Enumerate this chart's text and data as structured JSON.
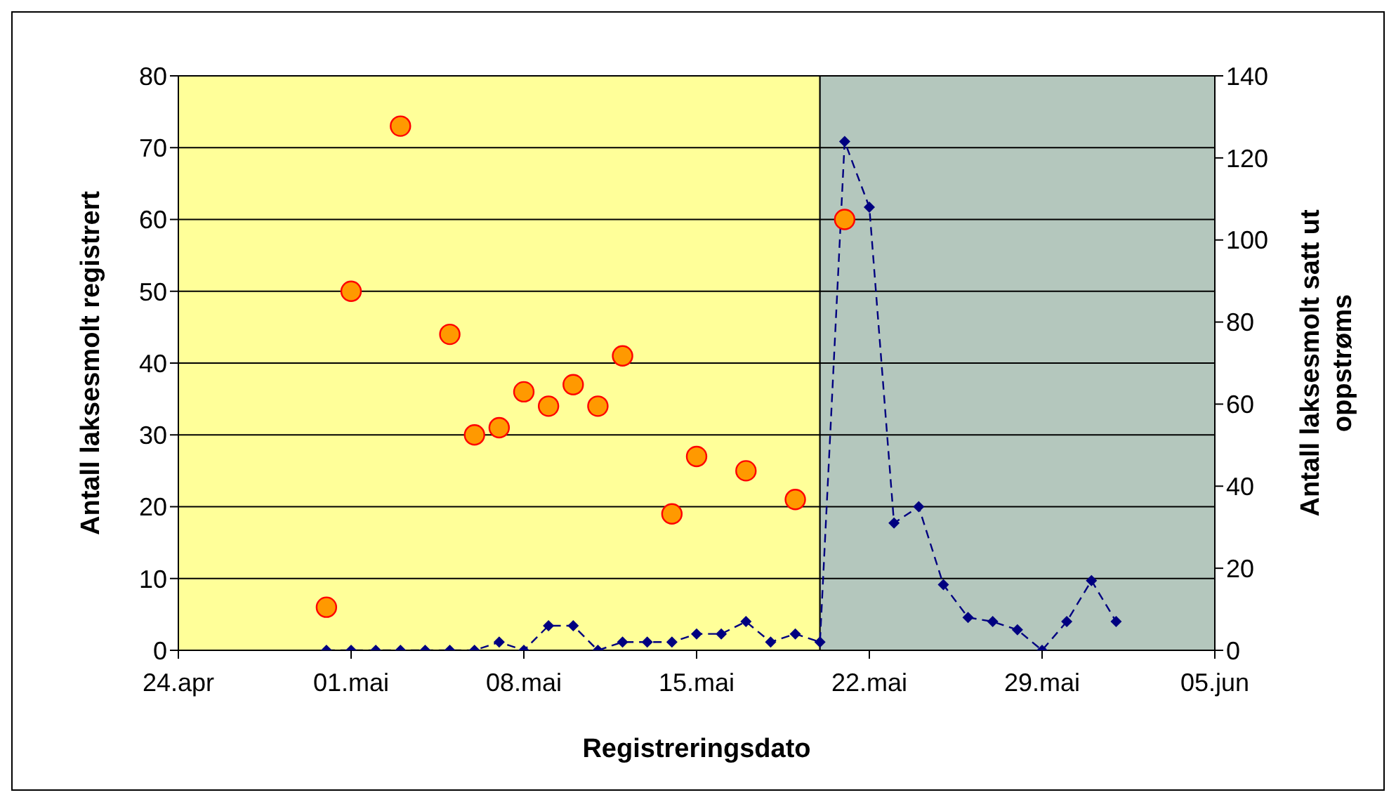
{
  "chart_data": {
    "type": "scatter",
    "xlabel": "Registreringsdato",
    "ylabel": "Antall laksesmolt registrert",
    "y2label": "Antall laksesmolt satt ut oppstrøms",
    "xlim": [
      "--04-24",
      "--06-05"
    ],
    "xticks": [
      {
        "value": "--04-24",
        "label": "24.apr"
      },
      {
        "value": "--05-01",
        "label": "01.mai"
      },
      {
        "value": "--05-08",
        "label": "08.mai"
      },
      {
        "value": "--05-15",
        "label": "15.mai"
      },
      {
        "value": "--05-22",
        "label": "22.mai"
      },
      {
        "value": "--05-29",
        "label": "29.mai"
      },
      {
        "value": "--06-05",
        "label": "05.jun"
      }
    ],
    "ylim": [
      0,
      80
    ],
    "yticks": [
      0,
      10,
      20,
      30,
      40,
      50,
      60,
      70,
      80
    ],
    "y2lim": [
      0,
      140
    ],
    "y2ticks": [
      0,
      20,
      40,
      60,
      80,
      100,
      120,
      140
    ],
    "grid": "y",
    "legend": false,
    "bands": [
      {
        "axis": "x",
        "from": "--04-24",
        "to": "--05-20",
        "color": "#ffff99"
      },
      {
        "axis": "x",
        "from": "--05-20",
        "to": "--06-05",
        "color": "#b4c7bd"
      }
    ],
    "series": [
      {
        "type": "scatter",
        "color": "#ff9900",
        "marker": "circle",
        "x": [
          "--04-30",
          "--05-01",
          "--05-03",
          "--05-05",
          "--05-06",
          "--05-07",
          "--05-08",
          "--05-09",
          "--05-10",
          "--05-11",
          "--05-12",
          "--05-14",
          "--05-15",
          "--05-17",
          "--05-19",
          "--05-21"
        ],
        "values": [
          6,
          50,
          73,
          44,
          30,
          31,
          36,
          34,
          37,
          34,
          41,
          19,
          27,
          25,
          21,
          60
        ]
      },
      {
        "type": "line",
        "axis": "y2",
        "color": "#000080",
        "line_style": "dashed",
        "marker": "diamond",
        "x": [
          "--04-30",
          "--05-01",
          "--05-02",
          "--05-03",
          "--05-04",
          "--05-05",
          "--05-06",
          "--05-07",
          "--05-08",
          "--05-09",
          "--05-10",
          "--05-11",
          "--05-12",
          "--05-13",
          "--05-14",
          "--05-15",
          "--05-16",
          "--05-17",
          "--05-18",
          "--05-19",
          "--05-20",
          "--05-21",
          "--05-22",
          "--05-23",
          "--05-24",
          "--05-25",
          "--05-26",
          "--05-27",
          "--05-28",
          "--05-29",
          "--05-30",
          "--05-31",
          "--06-01"
        ],
        "values": [
          0,
          0,
          0,
          0,
          0,
          0,
          0,
          2,
          0,
          6,
          6,
          0,
          2,
          2,
          2,
          4,
          4,
          7,
          2,
          4,
          2,
          124,
          108,
          31,
          35,
          16,
          8,
          7,
          5,
          0,
          7,
          17,
          7
        ]
      }
    ]
  }
}
